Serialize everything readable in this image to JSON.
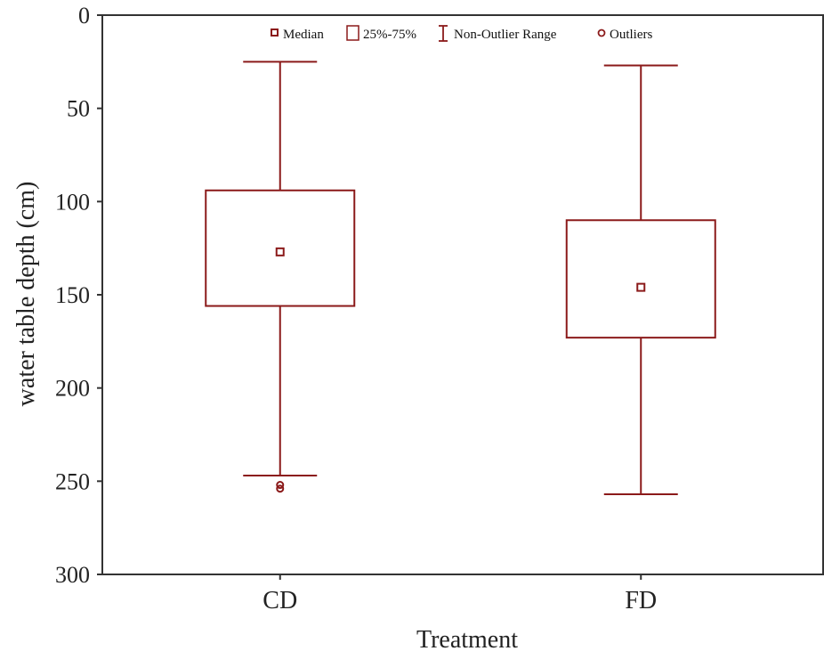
{
  "chart_data": {
    "type": "box",
    "xlabel": "Treatment",
    "ylabel": "water table depth (cm)",
    "ylim": [
      0,
      300
    ],
    "y_inverted": true,
    "y_ticks": [
      0,
      50,
      100,
      150,
      200,
      250,
      300
    ],
    "categories": [
      "CD",
      "FD"
    ],
    "boxes": [
      {
        "category": "CD",
        "median": 127,
        "q1": 94,
        "q3": 156,
        "whisker_min": 25,
        "whisker_max": 247,
        "outliers": [
          252,
          254
        ]
      },
      {
        "category": "FD",
        "median": 146,
        "q1": 110,
        "q3": 173,
        "whisker_min": 27,
        "whisker_max": 257,
        "outliers": []
      }
    ],
    "legend": {
      "position": "top-center",
      "entries": [
        "Median",
        "25%-75%",
        "Non-Outlier Range",
        "Outliers"
      ]
    },
    "grid": false,
    "color": "#8b1a1a"
  }
}
